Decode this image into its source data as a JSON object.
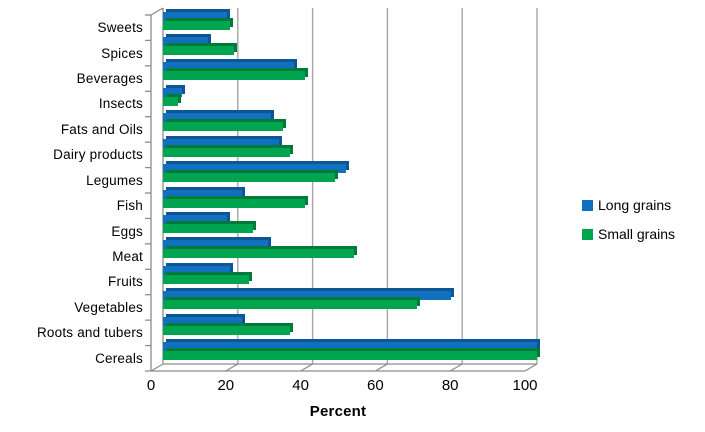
{
  "chart_data": {
    "type": "bar",
    "orientation": "horizontal",
    "xlabel": "Percent",
    "categories": [
      "Sweets",
      "Spices",
      "Beverages",
      "Insects",
      "Fats and Oils",
      "Dairy products",
      "Legumes",
      "Fish",
      "Eggs",
      "Meat",
      "Fruits",
      "Vegetables",
      "Roots and tubers",
      "Cereals"
    ],
    "series": [
      {
        "name": "Long grains",
        "color": "#1171BE",
        "shade_color": "#0C5596",
        "values": [
          17,
          12,
          35,
          5,
          29,
          31,
          49,
          21,
          17,
          28,
          18,
          77,
          21,
          100
        ]
      },
      {
        "name": "Small grains",
        "color": "#00A64F",
        "shade_color": "#007A3A",
        "values": [
          18,
          19,
          38,
          4,
          32,
          34,
          46,
          38,
          24,
          51,
          23,
          68,
          34,
          100
        ]
      }
    ],
    "x_ticks": [
      0,
      20,
      40,
      60,
      80,
      100
    ],
    "xlim": [
      0,
      100
    ],
    "grid": true,
    "legend_position": "right",
    "axis_color": "#8C8C8C",
    "gridline_color": "#A6A6A6",
    "text_color": "#000000"
  }
}
